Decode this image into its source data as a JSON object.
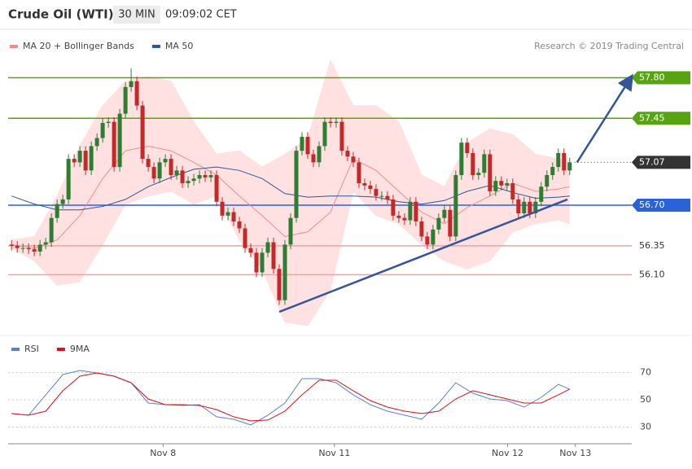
{
  "header": {
    "title": "Crude Oil (WTI)",
    "timeframe": "30 MIN",
    "time": "09:09:02 CET"
  },
  "chart_data": [
    {
      "type": "candlestick",
      "annotation": "Research © 2019 Trading Central",
      "xlim": [
        -0.6,
        108.9
      ],
      "ylim": [
        55.59,
        58.19
      ],
      "candles": {
        "up_color": "#2e7d32",
        "down_color": "#c62828",
        "open": [
          56.36,
          56.35,
          56.33,
          56.33,
          56.32,
          56.3,
          56.36,
          56.38,
          56.59,
          56.71,
          56.75,
          57.1,
          57.07,
          57.17,
          57.0,
          57.21,
          57.28,
          57.41,
          57.42,
          57.03,
          57.49,
          57.72,
          57.77,
          57.56,
          57.1,
          57.03,
          56.93,
          57.07,
          57.1,
          56.96,
          57.0,
          56.89,
          56.91,
          56.93,
          56.96,
          56.94,
          56.96,
          56.73,
          56.61,
          56.64,
          56.56,
          56.5,
          56.33,
          56.29,
          56.12,
          56.29,
          56.38,
          56.15,
          55.88,
          56.36,
          56.59,
          57.17,
          57.29,
          57.14,
          57.07,
          57.21,
          57.42,
          57.41,
          57.42,
          57.17,
          57.12,
          57.07,
          56.89,
          56.87,
          56.84,
          56.78,
          56.78,
          56.75,
          56.61,
          56.59,
          56.57,
          56.73,
          56.56,
          56.43,
          56.36,
          56.49,
          56.59,
          56.66,
          56.43,
          56.96,
          57.24,
          57.15,
          56.96,
          56.98,
          57.14,
          56.82,
          56.91,
          56.87,
          56.89,
          56.75,
          56.63,
          56.73,
          56.63,
          56.73,
          56.86,
          56.96,
          57.03,
          57.15,
          57.0
        ],
        "high": [
          56.4,
          56.39,
          56.37,
          56.37,
          56.36,
          56.4,
          56.42,
          56.63,
          56.75,
          56.79,
          57.14,
          57.14,
          57.21,
          57.21,
          57.25,
          57.32,
          57.45,
          57.46,
          57.46,
          57.53,
          57.76,
          57.88,
          57.81,
          57.6,
          57.14,
          57.07,
          57.11,
          57.14,
          57.14,
          57.04,
          57.04,
          56.95,
          56.97,
          57.0,
          57.0,
          57.0,
          57.0,
          56.77,
          56.68,
          56.68,
          56.6,
          56.54,
          56.37,
          56.33,
          56.33,
          56.42,
          56.42,
          56.19,
          56.4,
          56.63,
          57.21,
          57.33,
          57.33,
          57.18,
          57.25,
          57.46,
          57.46,
          57.46,
          57.46,
          57.21,
          57.16,
          57.11,
          56.93,
          56.91,
          56.88,
          56.82,
          56.82,
          56.79,
          56.65,
          56.63,
          56.77,
          56.77,
          56.6,
          56.47,
          56.53,
          56.63,
          56.7,
          56.7,
          57.0,
          57.28,
          57.28,
          57.19,
          57.02,
          57.18,
          57.18,
          56.95,
          56.95,
          56.93,
          56.93,
          56.79,
          56.77,
          56.77,
          56.77,
          56.9,
          57.0,
          57.07,
          57.19,
          57.19,
          57.11
        ],
        "low": [
          56.31,
          56.29,
          56.29,
          56.28,
          56.26,
          56.26,
          56.32,
          56.34,
          56.55,
          56.67,
          56.71,
          57.03,
          57.03,
          56.96,
          56.96,
          57.17,
          57.24,
          57.37,
          56.99,
          56.99,
          57.45,
          57.68,
          57.52,
          57.06,
          56.99,
          56.89,
          56.89,
          57.03,
          56.92,
          56.92,
          56.85,
          56.85,
          56.87,
          56.89,
          56.9,
          56.9,
          56.69,
          56.57,
          56.57,
          56.52,
          56.46,
          56.29,
          56.25,
          56.08,
          56.08,
          56.25,
          56.11,
          55.84,
          55.84,
          56.32,
          56.55,
          57.13,
          57.1,
          57.03,
          57.03,
          57.17,
          57.37,
          57.37,
          57.13,
          57.08,
          57.03,
          56.85,
          56.83,
          56.8,
          56.74,
          56.74,
          56.71,
          56.57,
          56.55,
          56.53,
          56.53,
          56.52,
          56.39,
          56.32,
          56.32,
          56.45,
          56.55,
          56.39,
          56.39,
          56.92,
          57.11,
          56.92,
          56.92,
          56.94,
          56.78,
          56.78,
          56.83,
          56.83,
          56.71,
          56.59,
          56.59,
          56.59,
          56.59,
          56.69,
          56.82,
          56.92,
          56.99,
          56.96,
          56.96
        ],
        "close": [
          56.35,
          56.33,
          56.33,
          56.32,
          56.3,
          56.36,
          56.38,
          56.59,
          56.71,
          56.75,
          57.1,
          57.07,
          57.17,
          57.0,
          57.21,
          57.28,
          57.41,
          57.42,
          57.03,
          57.49,
          57.72,
          57.77,
          57.56,
          57.1,
          57.03,
          56.93,
          57.07,
          57.1,
          56.96,
          57.0,
          56.89,
          56.91,
          56.93,
          56.96,
          56.94,
          56.96,
          56.73,
          56.61,
          56.64,
          56.56,
          56.5,
          56.33,
          56.29,
          56.12,
          56.29,
          56.38,
          56.15,
          55.88,
          56.36,
          56.59,
          57.17,
          57.29,
          57.14,
          57.07,
          57.21,
          57.42,
          57.41,
          57.42,
          57.17,
          57.12,
          57.07,
          56.89,
          56.87,
          56.84,
          56.78,
          56.78,
          56.75,
          56.61,
          56.59,
          56.57,
          56.73,
          56.56,
          56.43,
          56.36,
          56.49,
          56.59,
          56.66,
          56.43,
          56.96,
          57.24,
          57.15,
          56.96,
          56.98,
          57.14,
          56.82,
          56.91,
          56.87,
          56.89,
          56.75,
          56.63,
          56.73,
          56.63,
          56.73,
          56.86,
          56.96,
          57.03,
          57.15,
          57.0,
          57.07
        ]
      },
      "series": [
        {
          "name": "MA 20 + Bollinger Bands",
          "color": "#f28b8b",
          "band_color": "#ffe1e1",
          "x": [
            0,
            4,
            8,
            12,
            16,
            20,
            24,
            28,
            32,
            36,
            40,
            44,
            48,
            52,
            56,
            60,
            64,
            68,
            72,
            76,
            80,
            84,
            88,
            92,
            96,
            98
          ],
          "values": [
            56.36,
            56.33,
            56.4,
            56.61,
            56.93,
            57.17,
            57.21,
            57.17,
            57.07,
            56.96,
            56.78,
            56.61,
            56.43,
            56.47,
            56.64,
            57.1,
            57.0,
            56.82,
            56.64,
            56.54,
            56.68,
            56.78,
            56.89,
            56.82,
            56.84,
            56.86
          ],
          "upper": [
            56.4,
            56.43,
            56.78,
            57.21,
            57.56,
            57.77,
            57.81,
            57.77,
            57.42,
            57.14,
            57.17,
            57.03,
            57.14,
            57.28,
            57.95,
            57.56,
            57.56,
            57.42,
            56.96,
            56.86,
            57.24,
            57.36,
            57.31,
            57.14,
            57.1,
            57.08
          ],
          "lower": [
            56.33,
            56.22,
            56.01,
            56.04,
            56.36,
            56.71,
            56.78,
            56.82,
            56.71,
            56.78,
            56.4,
            56.15,
            55.69,
            55.66,
            55.97,
            56.82,
            56.61,
            56.54,
            56.36,
            56.22,
            56.15,
            56.22,
            56.47,
            56.54,
            56.57,
            56.54
          ]
        },
        {
          "name": "MA 50",
          "color": "#2f5597",
          "x": [
            0,
            4,
            8,
            12,
            16,
            20,
            24,
            28,
            32,
            36,
            40,
            44,
            48,
            52,
            56,
            60,
            64,
            68,
            72,
            76,
            80,
            84,
            88,
            92,
            96,
            98
          ],
          "values": [
            56.78,
            56.71,
            56.66,
            56.66,
            56.69,
            56.75,
            56.86,
            56.94,
            57.01,
            57.03,
            57.0,
            56.93,
            56.8,
            56.77,
            56.78,
            56.78,
            56.77,
            56.73,
            56.71,
            56.74,
            56.82,
            56.87,
            56.81,
            56.76,
            56.77,
            56.78
          ]
        }
      ],
      "levels": [
        {
          "value": 57.8,
          "label": "57.80",
          "color": "#58a312",
          "style": "solid",
          "tag": "fill"
        },
        {
          "value": 57.45,
          "label": "57.45",
          "color": "#58a312",
          "style": "solid",
          "tag": "fill"
        },
        {
          "value": 57.07,
          "label": "57.07",
          "color": "#333333",
          "style": "dotted",
          "tag": "fill"
        },
        {
          "value": 56.7,
          "label": "56.70",
          "color": "#2a62d8",
          "style": "solid",
          "tag": "fill"
        },
        {
          "value": 56.35,
          "label": "56.35",
          "color": "#f2a0a0",
          "style": "solid",
          "tag": "text"
        },
        {
          "value": 56.1,
          "label": "56.10",
          "color": "#f2a0a0",
          "style": "solid",
          "tag": "text"
        }
      ],
      "trendlines": [
        {
          "x": [
            47,
            97.6
          ],
          "values": [
            55.78,
            56.75
          ],
          "color": "#34559a",
          "arrow": false
        },
        {
          "x": [
            99.3,
            108.6
          ],
          "values": [
            57.07,
            57.79
          ],
          "color": "#34559a",
          "arrow": true
        }
      ]
    },
    {
      "type": "line",
      "xlim": [
        -0.6,
        108.9
      ],
      "ylim": [
        20.7,
        95.4
      ],
      "yticks": [
        30,
        50,
        70
      ],
      "grid": true,
      "xticks": [
        {
          "value": 26.6,
          "label": "Nov 8"
        },
        {
          "value": 56.7,
          "label": "Nov 11"
        },
        {
          "value": 87.1,
          "label": "Nov 12"
        },
        {
          "value": 99,
          "label": "Nov 13"
        }
      ],
      "x": [
        0,
        3,
        6,
        9,
        12,
        15,
        18,
        21,
        24,
        27,
        30,
        33,
        36,
        39,
        42,
        45,
        48,
        51,
        54,
        57,
        60,
        63,
        66,
        69,
        72,
        75,
        78,
        81,
        84,
        87,
        90,
        93,
        96,
        98
      ],
      "series": [
        {
          "name": "RSI",
          "color": "#5b7fd6",
          "values": [
            39.9,
            38.7,
            53.6,
            68.5,
            71.5,
            69.7,
            67.3,
            62.5,
            47.6,
            46.4,
            45.8,
            46.4,
            37.5,
            35.7,
            31.5,
            38.7,
            47.6,
            65.5,
            65.5,
            62.5,
            53.6,
            46.4,
            41.6,
            38.7,
            35.7,
            47.6,
            62.5,
            54.8,
            50.6,
            49.4,
            44.6,
            51.8,
            61.3,
            57.8
          ]
        },
        {
          "name": "9MA",
          "color": "#e01010",
          "values": [
            39.9,
            38.7,
            41.6,
            56.6,
            67.3,
            69.7,
            67.3,
            62.5,
            50.6,
            46.4,
            46.4,
            45.8,
            42.8,
            37.5,
            34.5,
            35.1,
            41.6,
            53.6,
            64.3,
            64.3,
            56.6,
            49.4,
            44.6,
            41.6,
            39.9,
            41.6,
            50.6,
            56.6,
            53.6,
            50.6,
            47.6,
            47.6,
            53.6,
            57.8
          ]
        }
      ]
    }
  ]
}
